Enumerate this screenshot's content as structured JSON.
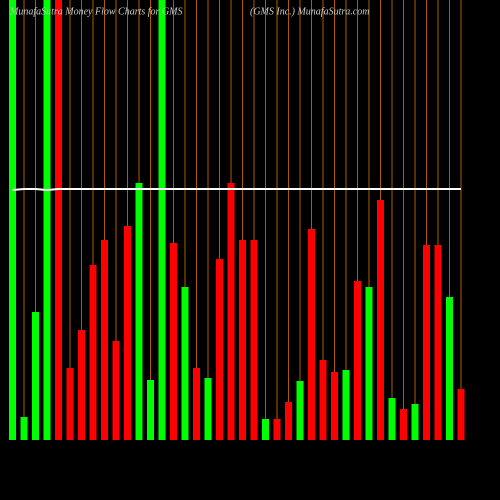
{
  "chart_data": {
    "type": "bar",
    "title": "MunafaSutra  Money Flow  Charts for GMS",
    "subtitle": "(GMS Inc.) MunafaSutra.com",
    "values": [
      440,
      23,
      128,
      440,
      440,
      72,
      110,
      175,
      200,
      99,
      214,
      257,
      60,
      440,
      197,
      153,
      72,
      62,
      181,
      257,
      200,
      200,
      21,
      21,
      38,
      59,
      211,
      80,
      68,
      70,
      159,
      153,
      240,
      42,
      31,
      36,
      195,
      195,
      143,
      51
    ],
    "colors": [
      "#00ff00",
      "#00ff00",
      "#00ff00",
      "#00ff00",
      "#ff0000",
      "#ff0000",
      "#ff0000",
      "#ff0000",
      "#ff0000",
      "#ff0000",
      "#ff0000",
      "#00ff00",
      "#00ff00",
      "#00ff00",
      "#ff0000",
      "#00ff00",
      "#ff0000",
      "#00ff00",
      "#ff0000",
      "#ff0000",
      "#ff0000",
      "#ff0000",
      "#00ff00",
      "#ff0000",
      "#ff0000",
      "#00ff00",
      "#ff0000",
      "#ff0000",
      "#ff0000",
      "#00ff00",
      "#ff0000",
      "#00ff00",
      "#ff0000",
      "#00ff00",
      "#ff0000",
      "#00ff00",
      "#ff0000",
      "#ff0000",
      "#00ff00",
      "#ff0000"
    ],
    "line_values": [
      250,
      251,
      251,
      250,
      251,
      251,
      251,
      251,
      251,
      251,
      251,
      251,
      251,
      251,
      251,
      251,
      251,
      251,
      251,
      251,
      251,
      251,
      251,
      251,
      251,
      251,
      251,
      251,
      251,
      251,
      251,
      251,
      251,
      251,
      251,
      251,
      251,
      251,
      251,
      251
    ],
    "ylim": [
      0,
      440
    ]
  }
}
